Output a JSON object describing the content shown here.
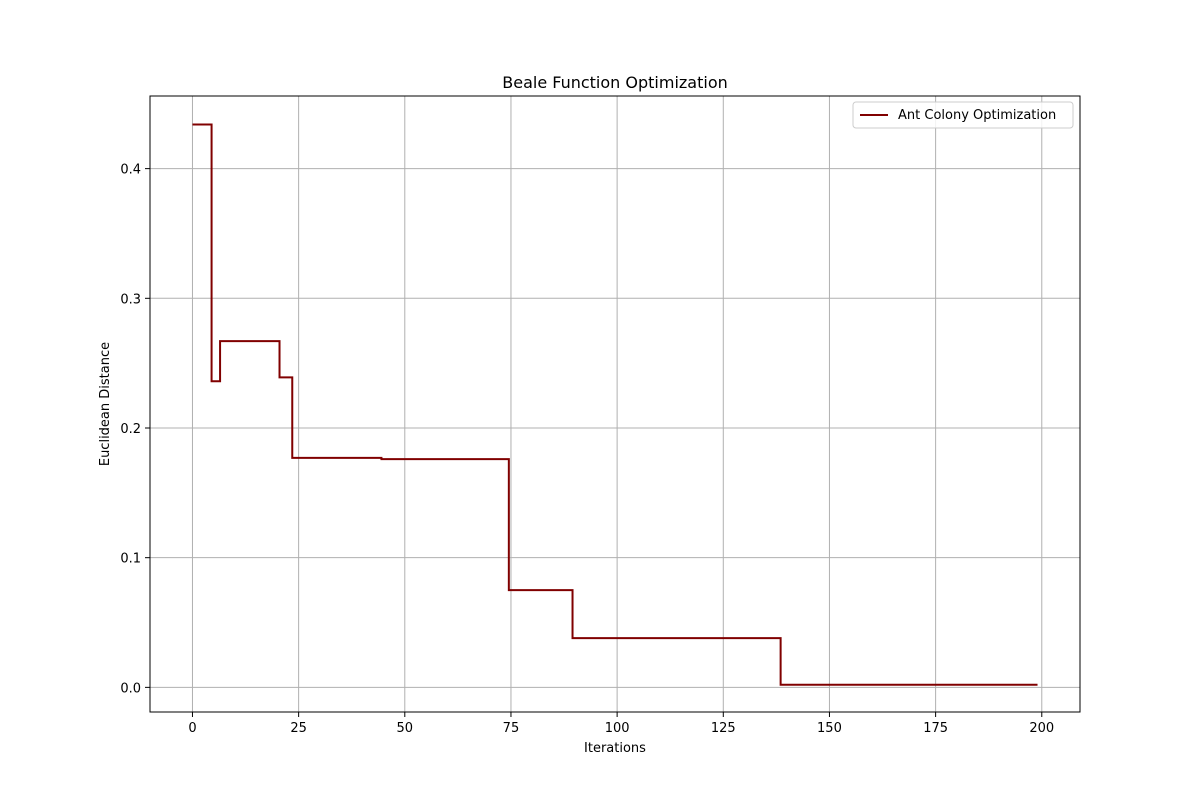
{
  "chart_data": {
    "type": "line",
    "title": "Beale Function Optimization",
    "xlabel": "Iterations",
    "ylabel": "Euclidean Distance",
    "xlim": [
      -10,
      209
    ],
    "ylim": [
      -0.019,
      0.456
    ],
    "x_ticks": [
      0,
      25,
      50,
      75,
      100,
      125,
      150,
      175,
      200
    ],
    "y_ticks": [
      0.0,
      0.1,
      0.2,
      0.3,
      0.4
    ],
    "x_tick_labels": [
      "0",
      "25",
      "50",
      "75",
      "100",
      "125",
      "150",
      "175",
      "200"
    ],
    "y_tick_labels": [
      "0.0",
      "0.1",
      "0.2",
      "0.3",
      "0.4"
    ],
    "grid": true,
    "legend_position": "top-right",
    "series": [
      {
        "name": "Ant Colony Optimization",
        "color": "#800000",
        "step": true,
        "points": [
          [
            0,
            0.434
          ],
          [
            4.5,
            0.236
          ],
          [
            6.5,
            0.267
          ],
          [
            20.5,
            0.239
          ],
          [
            23.5,
            0.177
          ],
          [
            44.5,
            0.176
          ],
          [
            74.5,
            0.075
          ],
          [
            89.5,
            0.038
          ],
          [
            138.5,
            0.002
          ],
          [
            199,
            0.002
          ]
        ]
      }
    ]
  }
}
